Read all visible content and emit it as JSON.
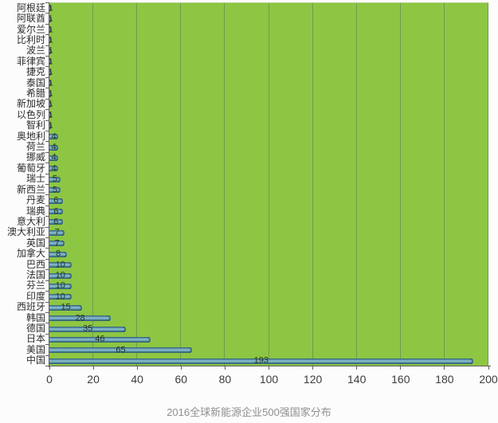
{
  "title": "2016全球新能源企业500强国家分布",
  "chart_data": {
    "type": "bar",
    "orientation": "horizontal",
    "title": "2016全球新能源企业500强国家分布",
    "categories": [
      "阿根廷",
      "阿联酋",
      "爱尔兰",
      "比利时",
      "波兰",
      "菲律宾",
      "捷克",
      "泰国",
      "希腊",
      "新加坡",
      "以色列",
      "智利",
      "奥地利",
      "荷兰",
      "挪威",
      "葡萄牙",
      "瑞士",
      "新西兰",
      "丹麦",
      "瑞典",
      "意大利",
      "澳大利亚",
      "英国",
      "加拿大",
      "巴西",
      "法国",
      "芬兰",
      "印度",
      "西班牙",
      "韩国",
      "德国",
      "日本",
      "美国",
      "中国"
    ],
    "values": [
      1,
      1,
      1,
      1,
      1,
      1,
      1,
      1,
      1,
      1,
      1,
      1,
      4,
      4,
      4,
      4,
      5,
      5,
      6,
      6,
      6,
      7,
      7,
      8,
      10,
      10,
      10,
      10,
      15,
      28,
      35,
      46,
      65,
      193
    ],
    "xlabel": "",
    "ylabel": "",
    "xlim": [
      0,
      200
    ],
    "x_ticks": [
      0,
      20,
      40,
      60,
      80,
      100,
      120,
      140,
      160,
      180,
      200
    ],
    "grid": true,
    "legend": "none",
    "data_labels": "center",
    "colors": {
      "plot_bg": "#8dc642",
      "gridline": "#6f9a4f",
      "bar": "#4e86a0",
      "axis": "#5f5f5f",
      "value_label": "#24371f",
      "category_label": "#2d2d2d",
      "tick_label": "#3d3d3d",
      "title": "#8e8e8e"
    }
  }
}
